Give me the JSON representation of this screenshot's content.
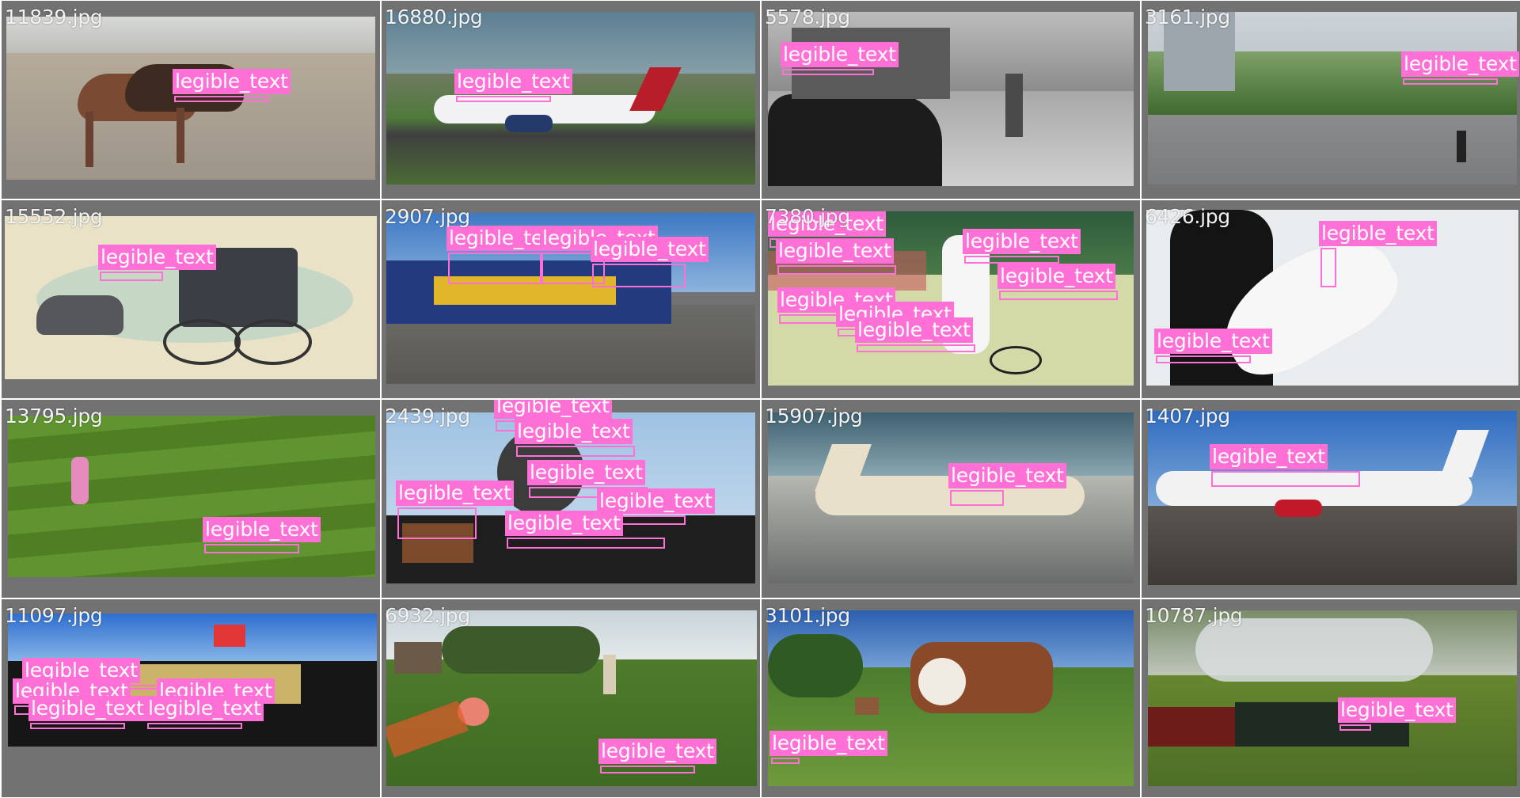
{
  "gallery": {
    "label_color": "#ff70d6",
    "tiles": [
      {
        "filename": "11839.jpg",
        "scene": "horses-on-dirt-field",
        "detections": [
          {
            "label": "legible_text"
          }
        ]
      },
      {
        "filename": "16880.jpg",
        "scene": "delta-airliner-on-runway",
        "detections": [
          {
            "label": "legible_text"
          }
        ]
      },
      {
        "filename": "5578.jpg",
        "scene": "black-and-white-street",
        "detections": [
          {
            "label": "legible_text"
          }
        ]
      },
      {
        "filename": "3161.jpg",
        "scene": "city-street-cyclist",
        "detections": [
          {
            "label": "legible_text"
          }
        ]
      },
      {
        "filename": "15552.jpg",
        "scene": "horse-drawn-rail-carriage-painting",
        "detections": [
          {
            "label": "legible_text"
          }
        ]
      },
      {
        "filename": "2907.jpg",
        "scene": "santa-fe-locomotive",
        "detections": [
          {
            "label": "legible_text"
          },
          {
            "label": "legible_text"
          },
          {
            "label": "legible_text"
          }
        ]
      },
      {
        "filename": "7380.jpg",
        "scene": "tennis-player-celebrating",
        "detections": [
          {
            "label": "legible_text"
          },
          {
            "label": "legible_text"
          },
          {
            "label": "legible_text"
          },
          {
            "label": "legible_text"
          },
          {
            "label": "legible_text"
          },
          {
            "label": "legible_text"
          },
          {
            "label": "legible_text"
          }
        ]
      },
      {
        "filename": "6426.jpg",
        "scene": "surfer-with-board",
        "detections": [
          {
            "label": "legible_text"
          },
          {
            "label": "legible_text"
          }
        ]
      },
      {
        "filename": "13795.jpg",
        "scene": "child-on-grass-field",
        "detections": [
          {
            "label": "legible_text"
          }
        ]
      },
      {
        "filename": "2439.jpg",
        "scene": "ornate-clock-sign",
        "detections": [
          {
            "label": "legible_text"
          },
          {
            "label": "legible_text"
          },
          {
            "label": "legible_text"
          },
          {
            "label": "legible_text"
          },
          {
            "label": "legible_text"
          },
          {
            "label": "legible_text"
          }
        ]
      },
      {
        "filename": "15907.jpg",
        "scene": "cargolux-747",
        "detections": [
          {
            "label": "legible_text"
          }
        ]
      },
      {
        "filename": "1407.jpg",
        "scene": "braniff-airliner",
        "detections": [
          {
            "label": "legible_text"
          }
        ]
      },
      {
        "filename": "11097.jpg",
        "scene": "freight-car-canadian-flag",
        "detections": [
          {
            "label": "legible_text"
          },
          {
            "label": "legible_text"
          },
          {
            "label": "legible_text"
          },
          {
            "label": "legible_text"
          },
          {
            "label": "legible_text"
          }
        ]
      },
      {
        "filename": "6932.jpg",
        "scene": "person-flying-kite-in-park",
        "detections": [
          {
            "label": "legible_text"
          }
        ]
      },
      {
        "filename": "3101.jpg",
        "scene": "cow-grazing-meadow",
        "detections": [
          {
            "label": "legible_text"
          }
        ]
      },
      {
        "filename": "10787.jpg",
        "scene": "steam-train-smoke",
        "detections": [
          {
            "label": "legible_text"
          }
        ]
      }
    ]
  }
}
